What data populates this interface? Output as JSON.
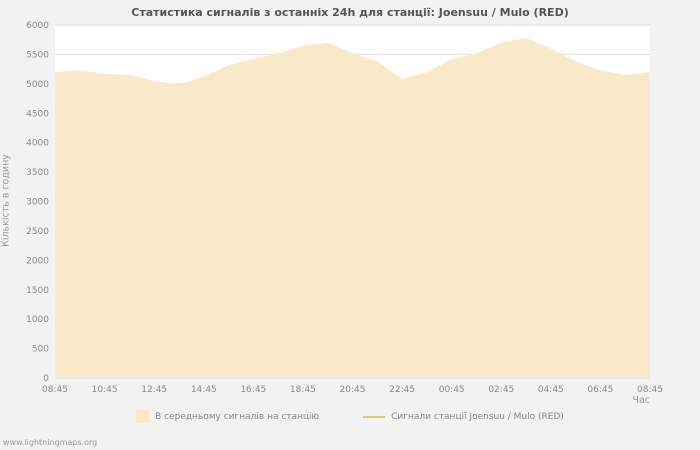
{
  "title": "Статистика сигналів з останніх 24h для станції: Joensuu / Mulo (RED)",
  "ylabel": "Кількість в годину",
  "xlabel": "Час",
  "watermark": "www.lightningmaps.org",
  "colors": {
    "area_fill": "#f8e9c8",
    "line": "#e0cc66",
    "grid": "#dddddd",
    "plot_background": "#ffffff",
    "page_background": "#f2f2f2"
  },
  "legend": [
    {
      "label": "В середньому сигналів на станцію",
      "type": "area",
      "color": "#f8e9c8"
    },
    {
      "label": "Сигнали станції Joensuu / Mulo (RED)",
      "type": "line",
      "color": "#e0cc66"
    }
  ],
  "chart_data": {
    "type": "area",
    "title": "Статистика сигналів з останніх 24h для станції: Joensuu / Mulo (RED)",
    "xlabel": "Час",
    "ylabel": "Кількість в годину",
    "ylim": [
      0,
      6000
    ],
    "y_tick_step": 500,
    "grid": "horizontal",
    "legend_position": "bottom",
    "x_ticks": [
      "08:45",
      "10:45",
      "12:45",
      "14:45",
      "16:45",
      "18:45",
      "20:45",
      "22:45",
      "00:45",
      "02:45",
      "04:45",
      "06:45",
      "08:45"
    ],
    "x": [
      "08:45",
      "09:45",
      "10:45",
      "11:45",
      "12:45",
      "13:45",
      "14:45",
      "15:45",
      "16:45",
      "17:45",
      "18:45",
      "19:45",
      "20:45",
      "21:45",
      "22:45",
      "23:45",
      "00:45",
      "01:45",
      "02:45",
      "03:45",
      "04:45",
      "05:45",
      "06:45",
      "07:45",
      "08:45"
    ],
    "series": [
      {
        "name": "В середньому сигналів на станцію",
        "type": "area",
        "color": "#f8e9c8",
        "values": [
          5200,
          5230,
          5170,
          5150,
          5050,
          4990,
          5120,
          5320,
          5420,
          5520,
          5650,
          5700,
          5520,
          5380,
          5080,
          5200,
          5420,
          5520,
          5700,
          5780,
          5600,
          5380,
          5230,
          5150,
          5200
        ]
      },
      {
        "name": "Сигнали станції Joensuu / Mulo (RED)",
        "type": "line",
        "color": "#e0cc66",
        "values": []
      }
    ]
  }
}
